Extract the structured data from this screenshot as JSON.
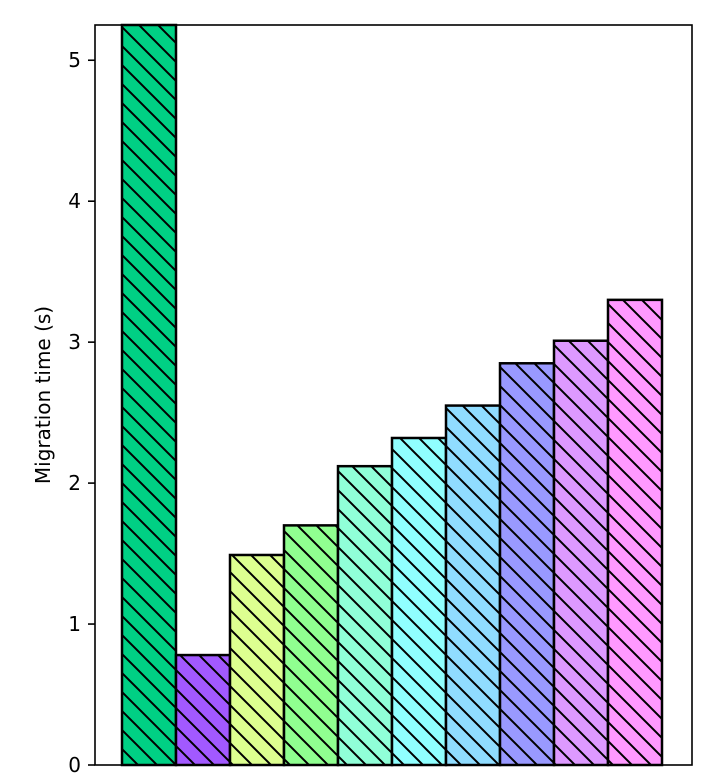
{
  "chart_data": {
    "type": "bar",
    "title": "",
    "xlabel": "",
    "ylabel": "Migration time (s)",
    "ylim": [
      0,
      5.25
    ],
    "yticks": [
      0,
      1,
      2,
      3,
      4,
      5
    ],
    "grid": false,
    "legend": "none",
    "hatch": "backslash-diagonal",
    "values": [
      5.25,
      0.78,
      1.49,
      1.7,
      2.12,
      2.32,
      2.55,
      2.85,
      3.01,
      3.3
    ],
    "colors": [
      "#00d084",
      "#a259ff",
      "#ddff90",
      "#90ff90",
      "#90ffd8",
      "#90ffff",
      "#90dcff",
      "#9999ff",
      "#dd99ff",
      "#ff99ff"
    ]
  }
}
